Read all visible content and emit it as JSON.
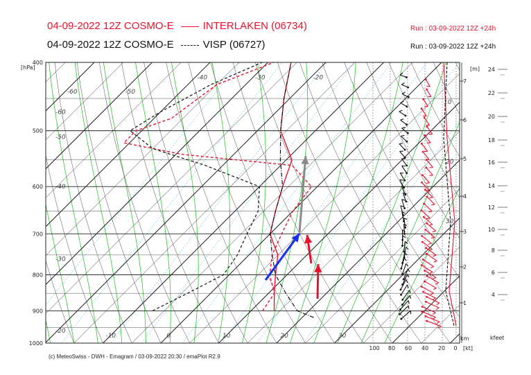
{
  "header": {
    "line1_title": "04-09-2022 12Z COSMO-E",
    "line1_station": "INTERLAKEN (06734)",
    "line1_run": "Run : 03-09-2022 12Z +24h",
    "line2_title": "04-09-2022 12Z COSMO-E",
    "line2_station": "VISP (06727)",
    "line2_run": "Run : 03-09-2022 12Z +24h"
  },
  "footer": "(c) MeteoSwiss - DWH - Emagram / 03-09-2022  20:30 / emaPlot R2.9",
  "colors": {
    "interlaken": "#e8112d",
    "visp": "#111111",
    "dry_adiabat": "#444444",
    "moist_adiabat": "#2ec52e",
    "mixing_ratio": "#5fc8e6",
    "wind_blue": "#1a2ee8",
    "wind_grey": "#8a8a8a"
  },
  "chart_data": {
    "type": "line",
    "title": "",
    "y_axis_label": "[hPa]",
    "y_scale": "log (pressure)",
    "ylim": [
      1000,
      400
    ],
    "pressure_ticks": [
      "400",
      "500",
      "600",
      "700",
      "800",
      "900",
      "1000"
    ],
    "temp_ticks": [
      "-60",
      "-50",
      "-40",
      "-30",
      "-20",
      "-10",
      "0",
      "10",
      "20",
      "30"
    ],
    "bottom_temp_ticks": [
      "-10",
      "0",
      "10",
      "20",
      "30"
    ],
    "height_m_label": "[m]",
    "height_km_ticks": [
      "1",
      "2",
      "3",
      "4",
      "5",
      "6",
      "7"
    ],
    "kfeet_label": "kfeet",
    "kfeet_ticks": [
      "4",
      "6",
      "8",
      "10",
      "12",
      "14",
      "16",
      "18",
      "20",
      "22",
      "24"
    ],
    "wind_speed_label": "[kt]",
    "wind_speed_ticks": [
      "100",
      "80",
      "60",
      "40",
      "20",
      "0"
    ],
    "km_label": "km",
    "theta_labels": [
      "10",
      "20",
      "30"
    ],
    "series": [
      {
        "name": "INTERLAKEN (06734)",
        "temperature": [
          [
            900,
            14
          ],
          [
            850,
            11
          ],
          [
            800,
            8
          ],
          [
            750,
            5
          ],
          [
            720,
            2
          ],
          [
            700,
            0
          ],
          [
            650,
            -3
          ],
          [
            600,
            -6
          ],
          [
            550,
            -9
          ],
          [
            500,
            -16
          ],
          [
            450,
            -21
          ],
          [
            400,
            -26
          ]
        ],
        "dewpoint": [
          [
            900,
            12
          ],
          [
            850,
            11
          ],
          [
            800,
            7
          ],
          [
            750,
            4
          ],
          [
            700,
            2
          ],
          [
            650,
            0
          ],
          [
            600,
            -1
          ],
          [
            560,
            -8
          ],
          [
            540,
            -29
          ],
          [
            520,
            -41
          ],
          [
            500,
            -41
          ],
          [
            480,
            -37
          ],
          [
            430,
            -35
          ],
          [
            400,
            -29
          ]
        ]
      },
      {
        "name": "VISP (06727)",
        "temperature": [
          [
            920,
            22
          ],
          [
            900,
            18
          ],
          [
            850,
            13
          ],
          [
            800,
            8
          ],
          [
            750,
            4
          ],
          [
            700,
            0
          ],
          [
            650,
            -3
          ],
          [
            600,
            -6
          ],
          [
            550,
            -11
          ],
          [
            500,
            -16
          ],
          [
            450,
            -21
          ],
          [
            400,
            -26
          ]
        ],
        "dewpoint": [
          [
            900,
            -7
          ],
          [
            850,
            -4
          ],
          [
            800,
            -1
          ],
          [
            750,
            -2
          ],
          [
            700,
            -4
          ],
          [
            650,
            -6
          ],
          [
            600,
            -10
          ],
          [
            560,
            -23
          ],
          [
            530,
            -35
          ],
          [
            500,
            -42
          ],
          [
            470,
            -40
          ],
          [
            430,
            -36
          ],
          [
            400,
            -31
          ]
        ]
      }
    ],
    "wind_arrows": [
      {
        "color": "blue",
        "from": [
          383,
          404
        ],
        "to": [
          432,
          337
        ]
      },
      {
        "color": "grey",
        "from": [
          432,
          335
        ],
        "to": [
          441,
          225
        ]
      },
      {
        "color": "red",
        "from": [
          458,
          431
        ],
        "to": [
          459,
          381
        ]
      },
      {
        "color": "red",
        "from": [
          449,
          380
        ],
        "to": [
          443,
          339
        ]
      }
    ]
  }
}
